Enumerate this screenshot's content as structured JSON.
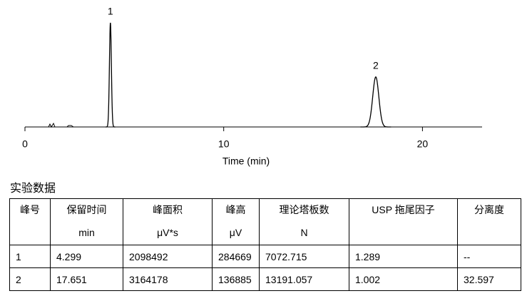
{
  "chart_data": {
    "type": "chromatogram",
    "xlabel": "Time (min)",
    "xlim": [
      0,
      23
    ],
    "xticks": [
      0,
      10,
      20
    ],
    "color": "#000000"
  },
  "table": {
    "title": "实验数据",
    "headers": [
      [
        "峰号"
      ],
      [
        "保留时间",
        "min"
      ],
      [
        "峰面积",
        "μV*s"
      ],
      [
        "峰高",
        "μV"
      ],
      [
        "理论塔板数",
        "N"
      ],
      [
        "USP 拖尾因子"
      ],
      [
        "分离度"
      ]
    ],
    "rows": [
      [
        "1",
        4.299,
        2098492,
        284669,
        7072.715,
        1.289,
        "--"
      ],
      [
        "2",
        17.651,
        3164178,
        136885,
        13191.057,
        1.002,
        32.597
      ]
    ]
  }
}
